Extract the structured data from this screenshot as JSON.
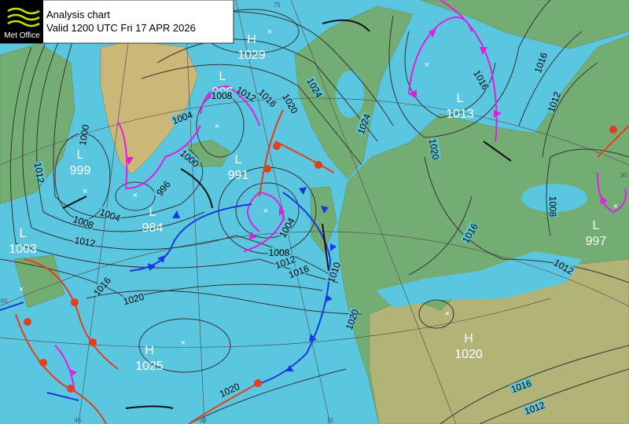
{
  "header": {
    "logo": "Met Office",
    "title": "Analysis chart",
    "valid": "Valid 1200 UTC Fri 17 APR 2026"
  },
  "centers": [
    {
      "type": "H",
      "pressure": "1029"
    },
    {
      "type": "L",
      "pressure": "996"
    },
    {
      "type": "L",
      "pressure": "991"
    },
    {
      "type": "L",
      "pressure": "999"
    },
    {
      "type": "L",
      "pressure": "984"
    },
    {
      "type": "L",
      "pressure": "1003"
    },
    {
      "type": "H",
      "pressure": "1025"
    },
    {
      "type": "L",
      "pressure": "1013"
    },
    {
      "type": "L",
      "pressure": "997"
    },
    {
      "type": "H",
      "pressure": "1020"
    }
  ],
  "isobar_labels": [
    "1000",
    "1012",
    "1004",
    "1008",
    "1012",
    "1016",
    "1020",
    "1024",
    "1000",
    "996",
    "1024",
    "1004",
    "1008",
    "1012",
    "1016",
    "1020",
    "1004",
    "1008",
    "1012",
    "1016",
    "1010",
    "1020",
    "1020",
    "1016",
    "1016",
    "1012",
    "1020",
    "1008",
    "1016",
    "1012",
    "1016",
    "1012"
  ],
  "grid_labels": [
    "75",
    "60",
    "45",
    "30",
    "15",
    "30"
  ]
}
